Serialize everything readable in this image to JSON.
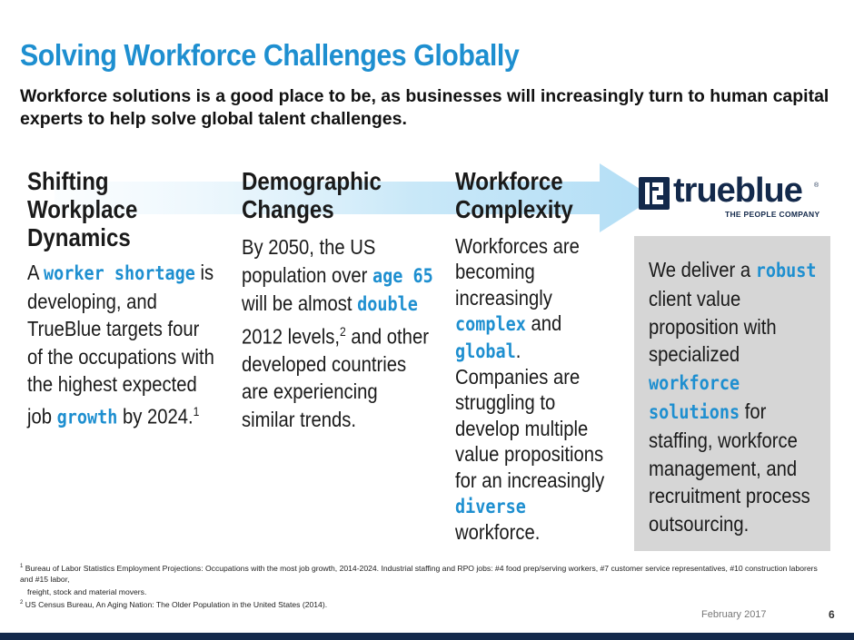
{
  "title": "Solving Workforce  Challenges Globally",
  "subtitle": "Workforce solutions is a good place to be, as businesses will increasingly turn to human capital experts to help solve global talent challenges.",
  "columns": [
    {
      "heading_lines": [
        "Shifting",
        "Workplace",
        "Dynamics"
      ],
      "body": {
        "p1": "A ",
        "h1": "worker shortage",
        "p2": " is developing, and TrueBlue targets four of the occupations with the highest expected job ",
        "h2": "growth",
        "p3": " by 2024.",
        "sup": "1"
      }
    },
    {
      "heading_lines": [
        "Demographic",
        "Changes"
      ],
      "body": {
        "p1": "By 2050, the US population over ",
        "h1": "age 65",
        "p2": " will be almost ",
        "h2": "double",
        "p3": " 2012 levels,",
        "sup": "2",
        "p4": " and other developed countries are experiencing similar trends."
      }
    },
    {
      "heading_lines": [
        "Workforce",
        "Complexity"
      ],
      "body": {
        "p1": "Workforces are becoming increasingly ",
        "h1": "complex",
        "p2": " and ",
        "h2": "global",
        "p3": ". Companies are struggling to develop multiple value propositions for an increasingly ",
        "h3": "diverse",
        "p4": " workforce."
      }
    }
  ],
  "logo": {
    "word": "trueblue",
    "reg": "®",
    "tagline": "THE PEOPLE COMPANY"
  },
  "box": {
    "p1": "We deliver a ",
    "h1": "robust",
    "p2": " client value proposition with specialized ",
    "h2": "workforce solutions",
    "p3": " for staffing, workforce management, and recruitment process outsourcing."
  },
  "footnotes": {
    "f1_num": "1",
    "f1_a": " Bureau of Labor Statistics Employment Projections: Occupations with the most job growth, 2014-2024. Industrial staffing and RPO jobs: #4 food prep/serving workers, #7 customer service representatives, #10 construction laborers and #15 labor,",
    "f1_b": "freight, stock and material movers.",
    "f2_num": "2",
    "f2": " US Census Bureau, An Aging Nation: The Older Population in the United States (2014)."
  },
  "footer": {
    "date": "February 2017",
    "page": "6"
  },
  "colors": {
    "accent": "#1e8fd0",
    "navy": "#13294b",
    "box": "#d6d6d6"
  }
}
